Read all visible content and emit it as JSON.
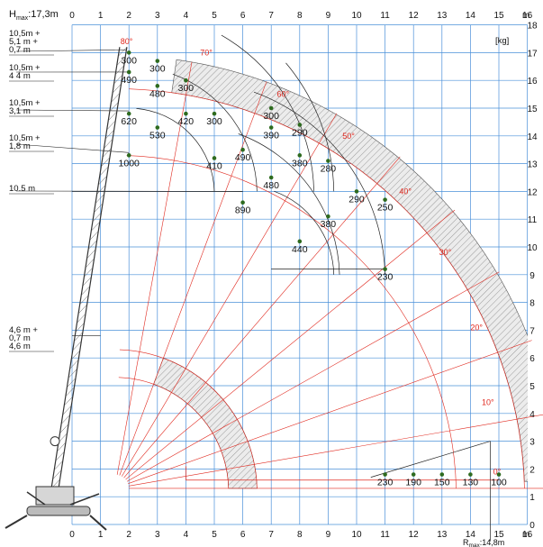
{
  "axes": {
    "x_ticks": [
      "0",
      "1",
      "2",
      "3",
      "4",
      "5",
      "6",
      "7",
      "8",
      "9",
      "10",
      "11",
      "12",
      "13",
      "14",
      "15",
      "16"
    ],
    "y_ticks": [
      "0",
      "1",
      "2",
      "3",
      "4",
      "5",
      "6",
      "7",
      "8",
      "9",
      "10",
      "11",
      "12",
      "13",
      "14",
      "15",
      "16",
      "17",
      "18"
    ],
    "x_unit": "m",
    "y_unit": "m",
    "unit_kg": "[kg]"
  },
  "header": {
    "hmax_label": "H",
    "hmax_sub": "max",
    "hmax_value": ":17,3m"
  },
  "footer": {
    "r_label": "R",
    "r_sub": "max",
    "r_value": ":14,8m"
  },
  "boom_configs": [
    {
      "lines": [
        "10,5m +",
        "5,1 m +",
        "0,7 m"
      ]
    },
    {
      "lines": [
        "10,5m +",
        "4 4 m"
      ]
    },
    {
      "lines": [
        "10,5m +",
        "3,1 m"
      ]
    },
    {
      "lines": [
        "10,5m +",
        "1,8 m"
      ]
    },
    {
      "lines": [
        "10.5 m"
      ]
    },
    {
      "lines": [
        "4,6 m +",
        "0,7 m",
        "4,6 m"
      ]
    }
  ],
  "angles": [
    "80°",
    "70°",
    "60°",
    "50°",
    "40°",
    "30°",
    "20°",
    "10°",
    "0°"
  ],
  "load_points": [
    {
      "x": 2.0,
      "y": 17.0,
      "v": "300"
    },
    {
      "x": 3.0,
      "y": 16.7,
      "v": "300"
    },
    {
      "x": 2.0,
      "y": 16.3,
      "v": "490"
    },
    {
      "x": 3.0,
      "y": 15.8,
      "v": "480"
    },
    {
      "x": 4.0,
      "y": 16.0,
      "v": "300"
    },
    {
      "x": 7.0,
      "y": 15.0,
      "v": "300"
    },
    {
      "x": 2.0,
      "y": 14.8,
      "v": "620"
    },
    {
      "x": 4.0,
      "y": 14.8,
      "v": "420"
    },
    {
      "x": 5.0,
      "y": 14.8,
      "v": "300"
    },
    {
      "x": 8.0,
      "y": 14.4,
      "v": "290"
    },
    {
      "x": 7.0,
      "y": 14.3,
      "v": "390"
    },
    {
      "x": 3.0,
      "y": 14.3,
      "v": "530"
    },
    {
      "x": 2.0,
      "y": 13.3,
      "v": "1000"
    },
    {
      "x": 6.0,
      "y": 13.5,
      "v": "490"
    },
    {
      "x": 5.0,
      "y": 13.2,
      "v": "410"
    },
    {
      "x": 8.0,
      "y": 13.3,
      "v": "380"
    },
    {
      "x": 9.0,
      "y": 13.1,
      "v": "280"
    },
    {
      "x": 7.0,
      "y": 12.5,
      "v": "480"
    },
    {
      "x": 10.0,
      "y": 12.0,
      "v": "290"
    },
    {
      "x": 11.0,
      "y": 11.7,
      "v": "250"
    },
    {
      "x": 6.0,
      "y": 11.6,
      "v": "890"
    },
    {
      "x": 9.0,
      "y": 11.1,
      "v": "380"
    },
    {
      "x": 8.0,
      "y": 10.2,
      "v": "440"
    },
    {
      "x": 11.0,
      "y": 9.2,
      "v": "230"
    },
    {
      "x": 11.0,
      "y": 1.8,
      "v": "230"
    },
    {
      "x": 12.0,
      "y": 1.8,
      "v": "190"
    },
    {
      "x": 13.0,
      "y": 1.8,
      "v": "150"
    },
    {
      "x": 14.0,
      "y": 1.8,
      "v": "130"
    },
    {
      "x": 15.0,
      "y": 1.8,
      "v": "100"
    }
  ],
  "colors": {
    "grid": "#4a90d9",
    "angle": "#e0281e",
    "point": "#2e6b1f",
    "hatch": "#9a9a9a"
  }
}
